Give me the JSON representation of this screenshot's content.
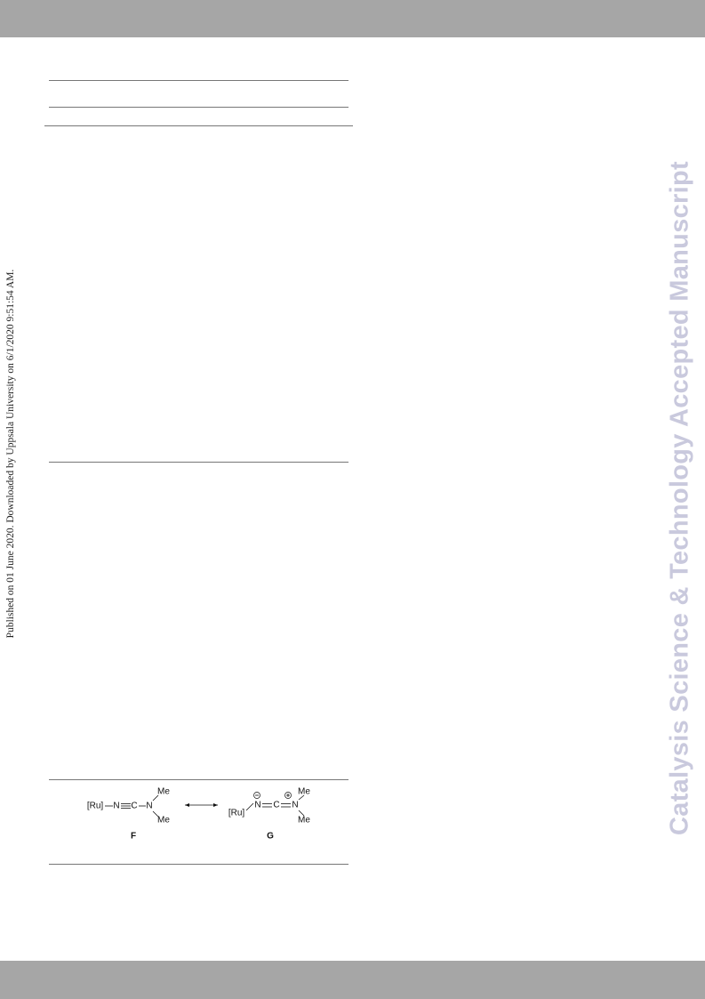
{
  "side_note": "Published on 01 June 2020. Downloaded by Uppsala University on 6/1/2020 9:51:54 AM.",
  "watermark": "Catalysis Science & Technology Accepted Manuscript",
  "scheme": {
    "F": {
      "ru": "[Ru]",
      "n1": "N",
      "c": "C",
      "n2": "N",
      "me_top": "Me",
      "me_bottom": "Me",
      "label": "F"
    },
    "G": {
      "ru": "[Ru]",
      "n1": "N",
      "c": "C",
      "n2": "N",
      "me_top": "Me",
      "me_bottom": "Me",
      "label": "G"
    }
  }
}
